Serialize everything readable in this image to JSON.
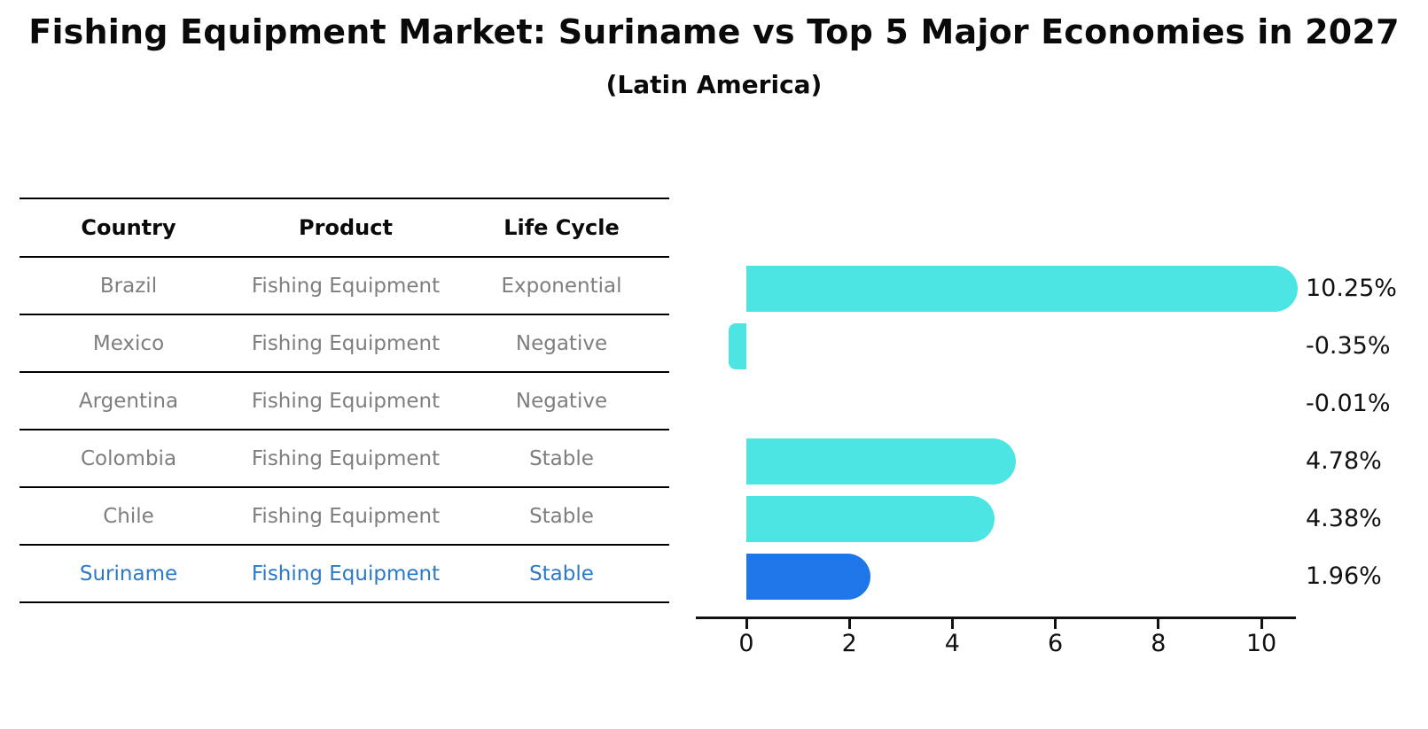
{
  "header": {
    "title": "Fishing Equipment Market: Suriname vs Top 5 Major Economies in 2027",
    "subtitle": "(Latin America)"
  },
  "table": {
    "columns": [
      "Country",
      "Product",
      "Life Cycle"
    ],
    "rows": [
      {
        "country": "Brazil",
        "product": "Fishing Equipment",
        "life_cycle": "Exponential",
        "highlight": false
      },
      {
        "country": "Mexico",
        "product": "Fishing Equipment",
        "life_cycle": "Negative",
        "highlight": false
      },
      {
        "country": "Argentina",
        "product": "Fishing Equipment",
        "life_cycle": "Negative",
        "highlight": false
      },
      {
        "country": "Colombia",
        "product": "Fishing Equipment",
        "life_cycle": "Stable",
        "highlight": false
      },
      {
        "country": "Chile",
        "product": "Fishing Equipment",
        "life_cycle": "Stable",
        "highlight": false
      },
      {
        "country": "Suriname",
        "product": "Fishing Equipment",
        "life_cycle": "Stable",
        "highlight": true
      }
    ]
  },
  "chart_data": {
    "type": "bar",
    "orientation": "horizontal",
    "title": "Fishing Equipment Market: Suriname vs Top 5 Major Economies in 2027",
    "subtitle": "(Latin America)",
    "categories": [
      "Brazil",
      "Mexico",
      "Argentina",
      "Colombia",
      "Chile",
      "Suriname"
    ],
    "values": [
      10.25,
      -0.35,
      -0.01,
      4.78,
      4.38,
      1.96
    ],
    "labels": [
      "10.25%",
      "-0.35%",
      "-0.01%",
      "4.78%",
      "4.38%",
      "1.96%"
    ],
    "xticks": [
      0,
      2,
      4,
      6,
      8,
      10
    ],
    "xlim": [
      -1,
      10.7
    ],
    "grid": false,
    "legend": "none",
    "bar_color": "#4DE4E4",
    "highlight_color": "#1E76E8",
    "highlight_index": 5,
    "highlight_text_color": "#2d79c8",
    "table_text_color": "#7e7e7e"
  }
}
